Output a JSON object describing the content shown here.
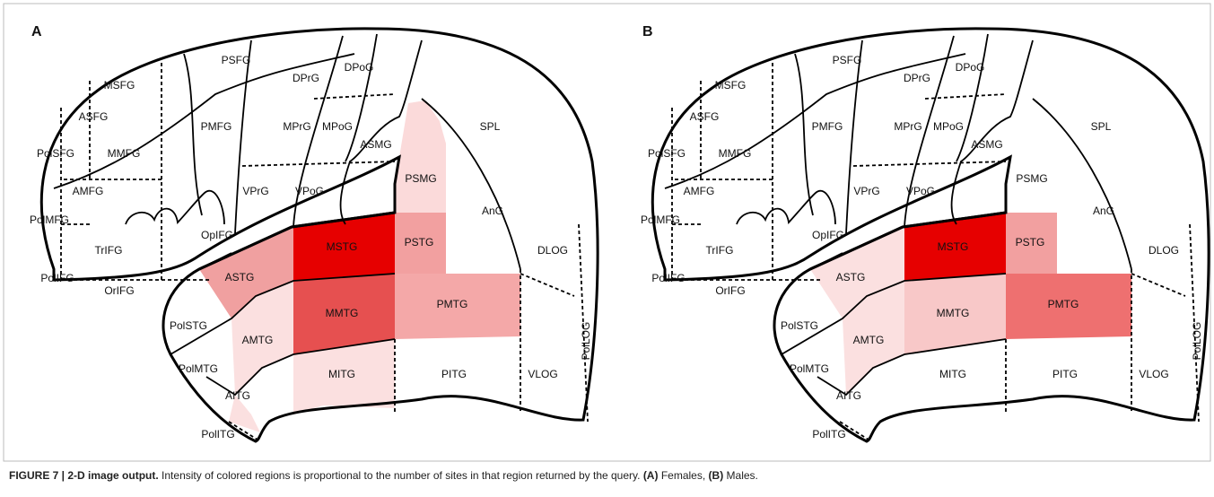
{
  "panels": [
    {
      "label": "A",
      "regions": [
        {
          "name": "PSFG"
        },
        {
          "name": "DPrG"
        },
        {
          "name": "DPoG"
        },
        {
          "name": "MSFG"
        },
        {
          "name": "ASFG"
        },
        {
          "name": "PMFG"
        },
        {
          "name": "MPrG"
        },
        {
          "name": "MPoG"
        },
        {
          "name": "ASMG"
        },
        {
          "name": "SPL"
        },
        {
          "name": "PolSFG"
        },
        {
          "name": "MMFG"
        },
        {
          "name": "AMFG"
        },
        {
          "name": "VPrG"
        },
        {
          "name": "VPoG"
        },
        {
          "name": "PSMG",
          "fill": "#fbdada"
        },
        {
          "name": "AnG"
        },
        {
          "name": "PolMFG"
        },
        {
          "name": "TrIFG"
        },
        {
          "name": "OpIFG"
        },
        {
          "name": "MSTG",
          "fill": "#e60000"
        },
        {
          "name": "PSTG",
          "fill": "#f2a0a0"
        },
        {
          "name": "DLOG"
        },
        {
          "name": "PolIFG"
        },
        {
          "name": "OrIFG"
        },
        {
          "name": "ASTG",
          "fill": "#f0a0a0"
        },
        {
          "name": "MMTG",
          "fill": "#e65050"
        },
        {
          "name": "PMTG",
          "fill": "#f4a8a8"
        },
        {
          "name": "PolSTG"
        },
        {
          "name": "AMTG",
          "fill": "#fbe0e0"
        },
        {
          "name": "PolMTG"
        },
        {
          "name": "MITG",
          "fill": "#fbe0e0"
        },
        {
          "name": "PITG"
        },
        {
          "name": "VLOG"
        },
        {
          "name": "PolLOG"
        },
        {
          "name": "AITG"
        },
        {
          "name": "PolITG",
          "fill": "#fbe0e0"
        }
      ]
    },
    {
      "label": "B",
      "regions": [
        {
          "name": "PSFG"
        },
        {
          "name": "DPrG"
        },
        {
          "name": "DPoG"
        },
        {
          "name": "MSFG"
        },
        {
          "name": "ASFG"
        },
        {
          "name": "PMFG"
        },
        {
          "name": "MPrG"
        },
        {
          "name": "MPoG"
        },
        {
          "name": "ASMG"
        },
        {
          "name": "SPL"
        },
        {
          "name": "PolSFG"
        },
        {
          "name": "MMFG"
        },
        {
          "name": "AMFG"
        },
        {
          "name": "VPrG"
        },
        {
          "name": "VPoG"
        },
        {
          "name": "PSMG"
        },
        {
          "name": "AnG"
        },
        {
          "name": "PolMFG"
        },
        {
          "name": "TrIFG"
        },
        {
          "name": "OpIFG"
        },
        {
          "name": "MSTG",
          "fill": "#e60000"
        },
        {
          "name": "PSTG",
          "fill": "#f2a0a0"
        },
        {
          "name": "DLOG"
        },
        {
          "name": "PolIFG"
        },
        {
          "name": "OrIFG"
        },
        {
          "name": "ASTG",
          "fill": "#fbe0e0"
        },
        {
          "name": "MMTG",
          "fill": "#f8c8c8"
        },
        {
          "name": "PMTG",
          "fill": "#ee7070"
        },
        {
          "name": "PolSTG"
        },
        {
          "name": "AMTG",
          "fill": "#fbe0e0"
        },
        {
          "name": "PolMTG"
        },
        {
          "name": "MITG"
        },
        {
          "name": "PITG"
        },
        {
          "name": "VLOG"
        },
        {
          "name": "PolLOG"
        },
        {
          "name": "AITG"
        },
        {
          "name": "PolITG"
        }
      ]
    }
  ],
  "caption": {
    "figure": "FIGURE 7 | 2-D image output.",
    "text": "Intensity of colored regions is proportional to the number of sites in that region returned by the query.",
    "a_label": "(A)",
    "a_text": "Females,",
    "b_label": "(B)",
    "b_text": "Males."
  }
}
